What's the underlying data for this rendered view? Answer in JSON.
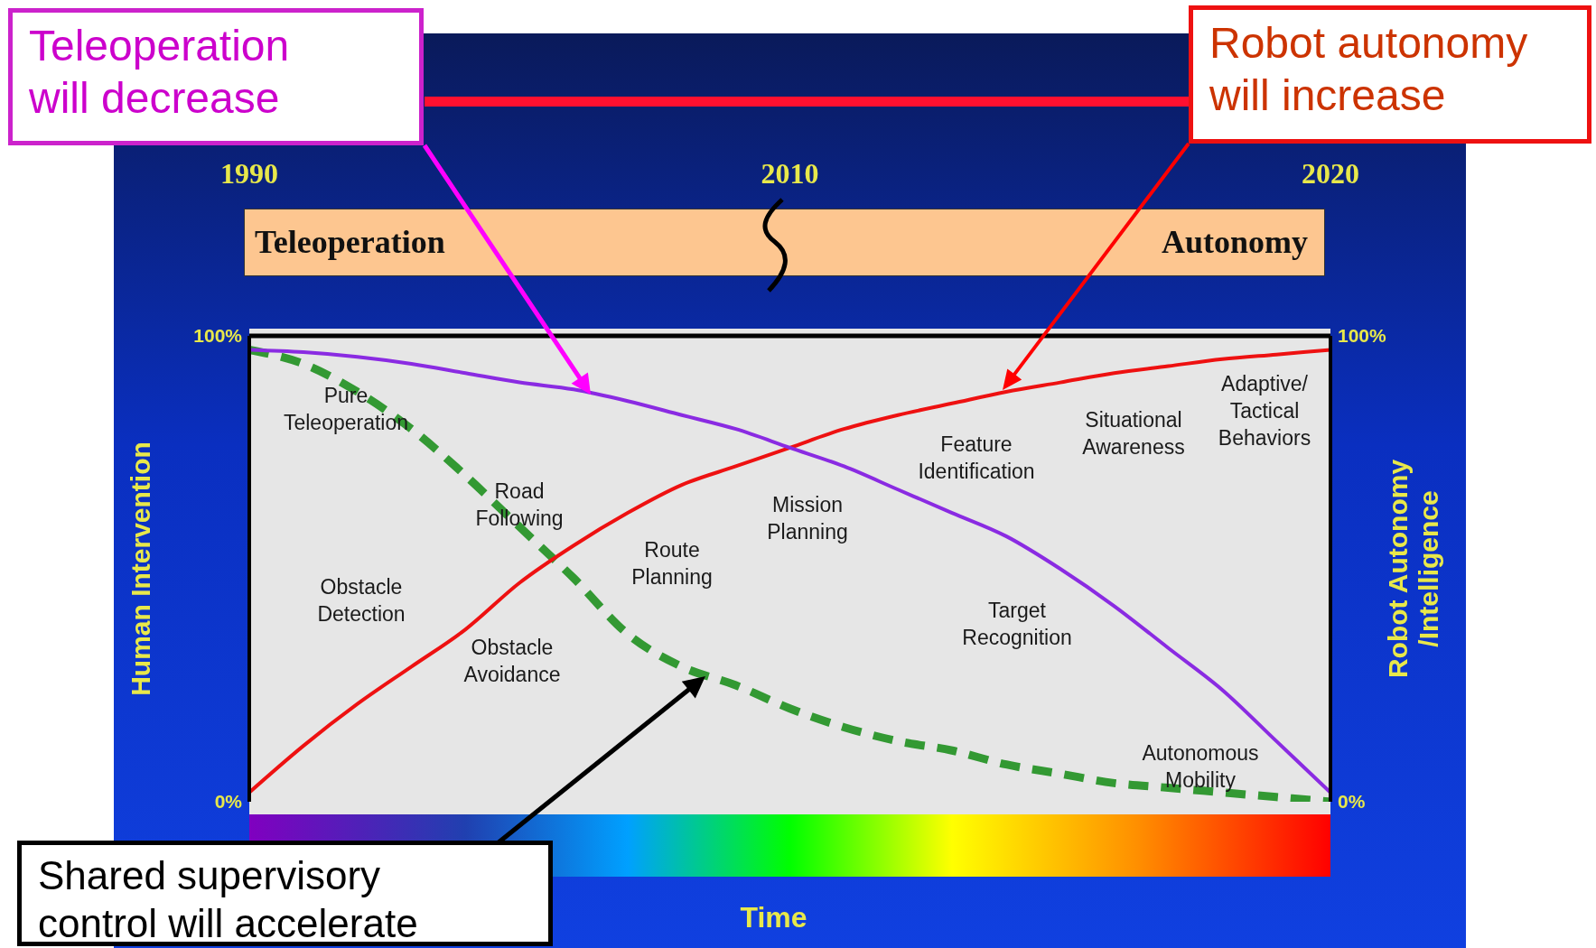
{
  "chart_data": {
    "type": "line",
    "categories": [
      "1990",
      null,
      null,
      null,
      null,
      null,
      null,
      null,
      null,
      null,
      "2010",
      null,
      null,
      null,
      null,
      null,
      null,
      null,
      null,
      null,
      "2020"
    ],
    "series": [
      {
        "color": "#8a2be2",
        "line_style": "solid",
        "values": [
          97,
          96.5,
          95.5,
          94,
          92,
          90,
          88.5,
          86,
          83,
          80,
          76,
          72,
          67,
          62,
          57,
          50,
          42,
          33,
          24,
          13,
          2
        ]
      },
      {
        "color": "#ee1111",
        "line_style": "solid",
        "values": [
          2,
          12,
          21,
          29,
          37,
          47,
          55,
          62,
          68,
          72,
          76,
          80,
          83,
          85.5,
          88,
          90,
          92,
          93.5,
          95,
          96,
          97
        ]
      },
      {
        "color": "#339933",
        "line_style": "dashed",
        "values": [
          97,
          94,
          88,
          80,
          70,
          59,
          48,
          36,
          29,
          25,
          20,
          16,
          13,
          11,
          8,
          6,
          4,
          3,
          2,
          1,
          0
        ]
      }
    ],
    "ylim": [
      0,
      100
    ],
    "yticks": [
      {
        "value": 0,
        "label": "0%"
      },
      {
        "value": 100,
        "label": "100%"
      }
    ],
    "y2lim": [
      0,
      100
    ],
    "y2ticks": [
      {
        "value": 0,
        "label": "0%"
      },
      {
        "value": 100,
        "label": "100%"
      }
    ],
    "xlabel": "Time",
    "ylabel": "Human Intervention",
    "y2label": "Robot Autonomy /Intelligence",
    "legend": false,
    "marker": "none",
    "grid": false,
    "annotations": [
      "Teleoperation will decrease",
      "Robot autonomy will increase",
      "Shared supervisory control will accelerate",
      "Teleoperation",
      "Autonomy",
      "Pure Teleoperation",
      "Obstacle Detection",
      "Road Following",
      "Obstacle Avoidance",
      "Route Planning",
      "Mission Planning",
      "Feature Identification",
      "Target Recognition",
      "Situational Awareness",
      "Adaptive/ Tactical Behaviors",
      "Autonomous Mobility"
    ]
  }
}
